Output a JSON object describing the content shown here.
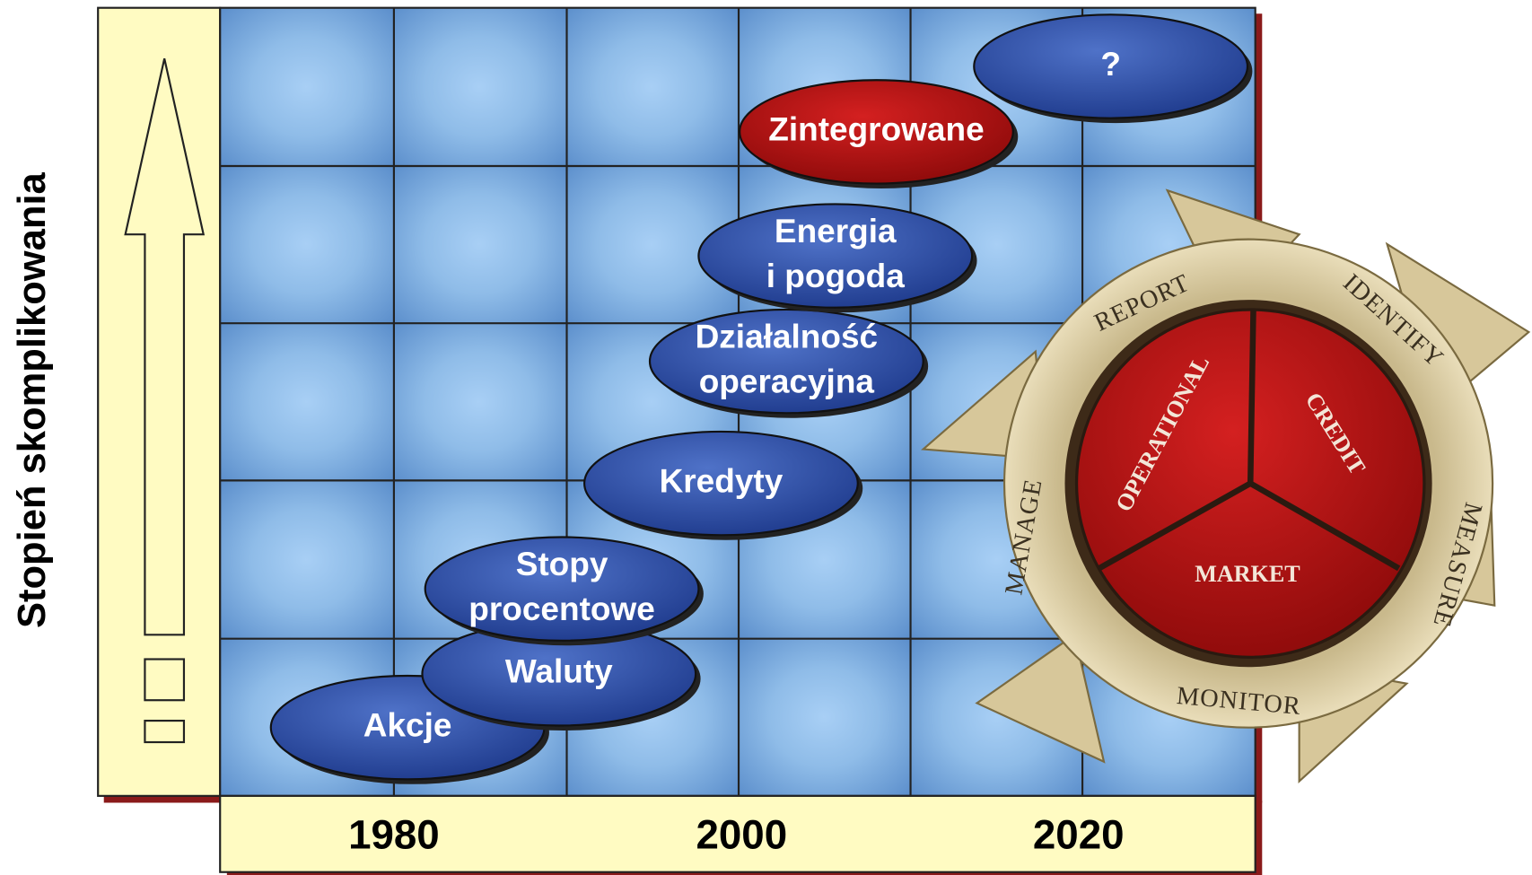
{
  "y_axis_label": "Stopień skomplikowania",
  "years": [
    "1980",
    "2000",
    "2020"
  ],
  "bubbles": [
    {
      "lines": [
        "Akcje"
      ],
      "color": "blue"
    },
    {
      "lines": [
        "Waluty"
      ],
      "color": "blue"
    },
    {
      "lines": [
        "Stopy",
        "procentowe"
      ],
      "color": "blue"
    },
    {
      "lines": [
        "Kredyty"
      ],
      "color": "blue"
    },
    {
      "lines": [
        "Działalność",
        "operacyjna"
      ],
      "color": "blue"
    },
    {
      "lines": [
        "Energia",
        "i pogoda"
      ],
      "color": "blue"
    },
    {
      "lines": [
        "Zintegrowane"
      ],
      "color": "red"
    },
    {
      "lines": [
        "?"
      ],
      "color": "blue"
    }
  ],
  "wheel": {
    "ring": [
      "REPORT",
      "IDENTIFY",
      "MEASURE",
      "MONITOR",
      "MANAGE"
    ],
    "segments": [
      "OPERATIONAL",
      "CREDIT",
      "MARKET"
    ]
  }
}
